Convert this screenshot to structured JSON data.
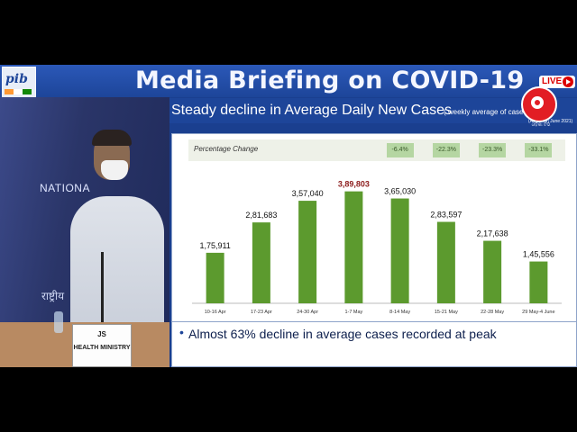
{
  "banner": {
    "title": "Media Briefing on COVID-19",
    "logo_text": "pib",
    "live_label": "LIVE"
  },
  "channel": {
    "subtitle": "ଓଡ଼ିଶା ଟିଭି"
  },
  "video": {
    "wall_text": "NATIONA",
    "wall_hindi": "राष्ट्रीय",
    "nameplate_line1": "JS",
    "nameplate_line2": "HEALTH MINISTRY"
  },
  "slide": {
    "title": "Steady decline in Average Daily New Cases",
    "note": "( weekly average of case",
    "as_of": "(As on 4th June 2021)",
    "bullet": "Almost 63% decline in average cases recorded at peak"
  },
  "colors": {
    "bar": "#5c9a2e",
    "peak_label": "#8b1a1a",
    "pill": "#b5d6a2"
  },
  "chart_data": {
    "type": "bar",
    "title": "Steady decline in Average Daily New Cases",
    "categories": [
      "10-16 Apr",
      "17-23 Apr",
      "24-30 Apr",
      "1-7 May",
      "8-14 May",
      "15-21 May",
      "22-28 May",
      "29 May-4 June"
    ],
    "values": [
      175911,
      281683,
      357040,
      389803,
      365030,
      283597,
      217638,
      145556
    ],
    "value_labels": [
      "1,75,911",
      "2,81,683",
      "3,57,040",
      "3,89,803",
      "3,65,030",
      "2,83,597",
      "2,17,638",
      "1,45,556"
    ],
    "peak_index": 3,
    "ylim": [
      0,
      420000
    ],
    "grid": false,
    "percentage_change": {
      "label": "Percentage Change",
      "values": [
        "-6.4%",
        "-22.3%",
        "-23.3%",
        "-33.1%"
      ],
      "category_index": [
        4,
        5,
        6,
        7
      ]
    }
  }
}
